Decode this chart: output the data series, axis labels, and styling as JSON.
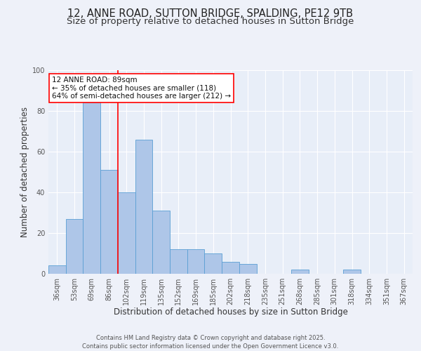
{
  "title": "12, ANNE ROAD, SUTTON BRIDGE, SPALDING, PE12 9TB",
  "subtitle": "Size of property relative to detached houses in Sutton Bridge",
  "xlabel": "Distribution of detached houses by size in Sutton Bridge",
  "ylabel": "Number of detached properties",
  "categories": [
    "36sqm",
    "53sqm",
    "69sqm",
    "86sqm",
    "102sqm",
    "119sqm",
    "135sqm",
    "152sqm",
    "169sqm",
    "185sqm",
    "202sqm",
    "218sqm",
    "235sqm",
    "251sqm",
    "268sqm",
    "285sqm",
    "301sqm",
    "318sqm",
    "334sqm",
    "351sqm",
    "367sqm"
  ],
  "values": [
    4,
    27,
    84,
    51,
    40,
    66,
    31,
    12,
    12,
    10,
    6,
    5,
    0,
    0,
    2,
    0,
    0,
    2,
    0,
    0,
    0
  ],
  "bar_color": "#aec6e8",
  "bar_edge_color": "#5a9fd4",
  "background_color": "#e8eef8",
  "grid_color": "#ffffff",
  "vline_x": 3.5,
  "vline_color": "red",
  "annotation_text": "12 ANNE ROAD: 89sqm\n← 35% of detached houses are smaller (118)\n64% of semi-detached houses are larger (212) →",
  "annotation_box_color": "white",
  "annotation_box_edge": "red",
  "footer": "Contains HM Land Registry data © Crown copyright and database right 2025.\nContains public sector information licensed under the Open Government Licence v3.0.",
  "ylim": [
    0,
    100
  ],
  "title_fontsize": 10.5,
  "subtitle_fontsize": 9.5,
  "xlabel_fontsize": 8.5,
  "ylabel_fontsize": 8.5,
  "tick_fontsize": 7,
  "footer_fontsize": 6,
  "annot_fontsize": 7.5
}
